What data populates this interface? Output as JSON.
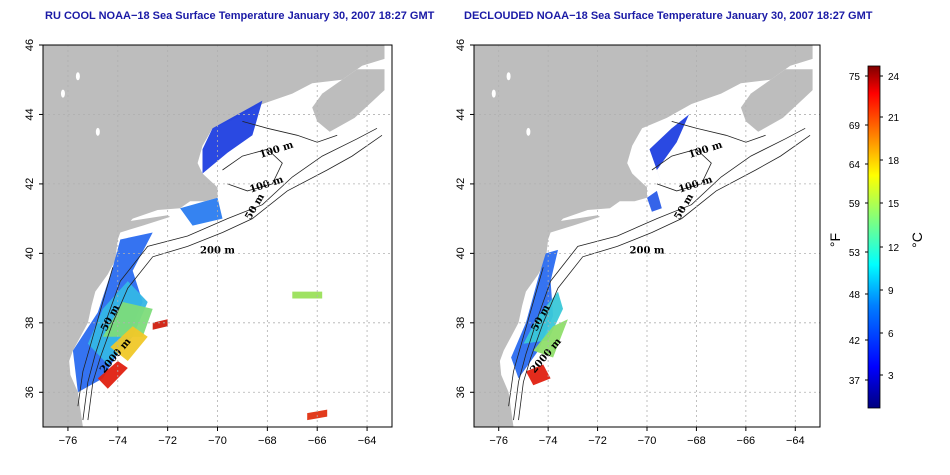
{
  "panels": [
    {
      "id": "left",
      "title": "RU COOL NOAA−18 Sea Surface Temperature January 30, 2007 18:27 GMT",
      "kind": "raw"
    },
    {
      "id": "right",
      "title": "DECLOUDED NOAA−18 Sea Surface Temperature January 30, 2007 18:27 GMT",
      "kind": "declouded"
    }
  ],
  "axes": {
    "lon_ticks": [
      "−76",
      "−74",
      "−72",
      "−70",
      "−68",
      "−66",
      "−64"
    ],
    "lat_ticks": [
      "36",
      "38",
      "40",
      "42",
      "44",
      "46"
    ]
  },
  "contour_labels": {
    "left": [
      "100 m",
      "100 m",
      "50 m",
      "200 m",
      "50 m",
      "2000 m"
    ],
    "right": [
      "100 m",
      "100 m",
      "50 m",
      "200 m",
      "50 m",
      "2000 m"
    ]
  },
  "colorbar": {
    "fahrenheit_ticks": [
      "75",
      "69",
      "64",
      "59",
      "53",
      "48",
      "42",
      "37"
    ],
    "celsius_ticks": [
      "24",
      "21",
      "18",
      "15",
      "12",
      "9",
      "6",
      "3"
    ],
    "unit_f": "°F",
    "unit_c": "°C",
    "colors": [
      "#00007f",
      "#0000ff",
      "#007fff",
      "#00ffff",
      "#7fff7f",
      "#ffff00",
      "#ff7f00",
      "#ff0000",
      "#7f0000"
    ]
  },
  "colors": {
    "land": "#bdbdbd",
    "title": "#1a1aa6",
    "grid": "#b0b0b0"
  }
}
